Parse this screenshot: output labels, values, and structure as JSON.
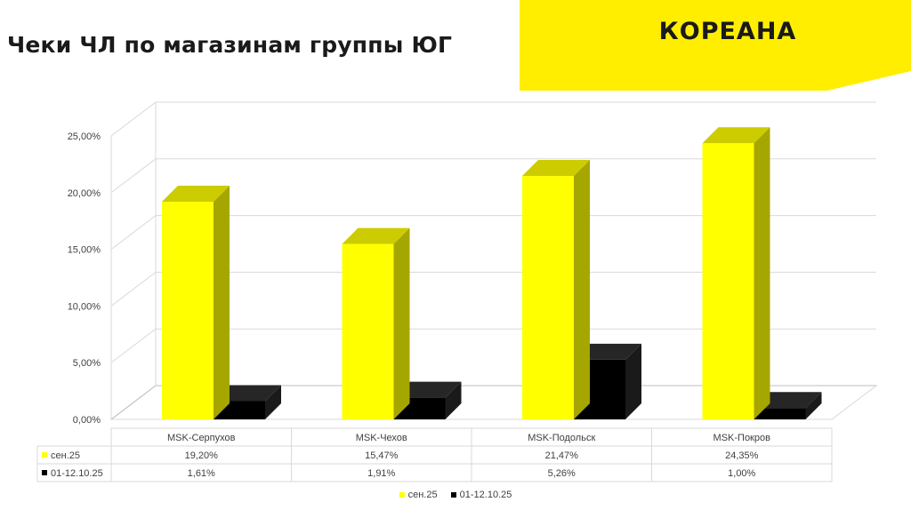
{
  "page": {
    "title": "Чеки ЧЛ по магазинам группы ЮГ"
  },
  "logo": {
    "text": "КОРЕАНА"
  },
  "colors": {
    "series1": "#ffff00",
    "series1_side": "#a6a600",
    "series1_top": "#cccc00",
    "series2": "#000000",
    "accent": "#ffee00"
  },
  "chart_data": {
    "type": "bar",
    "style": "3d-clustered-with-data-table",
    "categories": [
      "MSK-Серпухов",
      "MSK-Чехов",
      "MSK-Подольск",
      "MSK-Покров"
    ],
    "series": [
      {
        "name": "сен.25",
        "values": [
          19.2,
          15.47,
          21.47,
          24.35
        ],
        "labels": [
          "19,20%",
          "15,47%",
          "21,47%",
          "24,35%"
        ]
      },
      {
        "name": "01-12.10.25",
        "values": [
          1.61,
          1.91,
          5.26,
          1.0
        ],
        "labels": [
          "1,61%",
          "1,91%",
          "5,26%",
          "1,00%"
        ]
      }
    ],
    "ylim": [
      0,
      25
    ],
    "yticks": [
      "0,00%",
      "5,00%",
      "10,00%",
      "15,00%",
      "20,00%",
      "25,00%"
    ],
    "grid": true,
    "legend": "bottom"
  }
}
